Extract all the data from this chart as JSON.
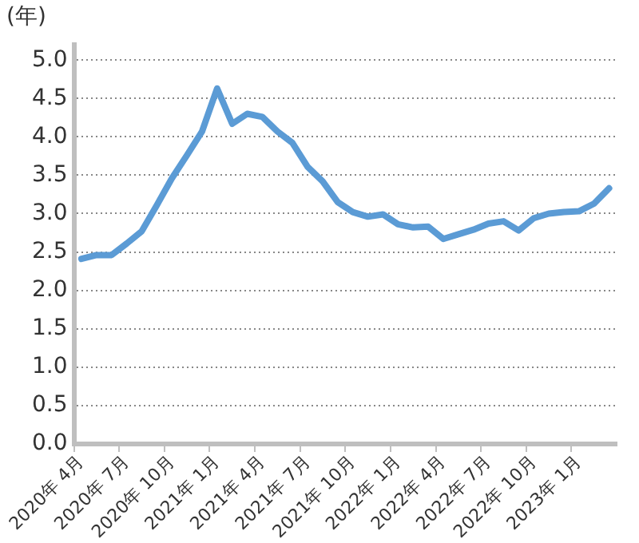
{
  "chart_data": {
    "type": "line",
    "ylabel": "(年)",
    "categories": [
      "2020年 4月",
      null,
      null,
      "2020年 7月",
      null,
      null,
      "2020年 10月",
      null,
      null,
      "2021年 1月",
      null,
      null,
      "2021年 4月",
      null,
      null,
      "2021年 7月",
      null,
      null,
      "2021年 10月",
      null,
      null,
      "2022年 1月",
      null,
      null,
      "2022年 4月",
      null,
      null,
      "2022年 7月",
      null,
      null,
      "2022年 10月",
      null,
      null,
      "2023年 1月",
      null,
      null
    ],
    "series": [
      {
        "color": "#5b9bd5",
        "values": [
          2.41,
          2.46,
          2.46,
          2.61,
          2.77,
          3.11,
          3.46,
          3.76,
          4.07,
          4.63,
          4.17,
          4.3,
          4.26,
          4.07,
          3.92,
          3.61,
          3.42,
          3.15,
          3.02,
          2.96,
          2.99,
          2.86,
          2.82,
          2.83,
          2.67,
          2.73,
          2.79,
          2.87,
          2.9,
          2.78,
          2.94,
          3.0,
          3.02,
          3.03,
          3.13,
          3.33
        ]
      }
    ],
    "ylim": [
      0,
      5.2
    ],
    "yticks": [
      {
        "value": 0,
        "label": "0.0"
      },
      {
        "value": 0.5,
        "label": "0.5"
      },
      {
        "value": 1,
        "label": "1.0"
      },
      {
        "value": 1.5,
        "label": "1.5"
      },
      {
        "value": 2,
        "label": "2.0"
      },
      {
        "value": 2.5,
        "label": "2.5"
      },
      {
        "value": 3,
        "label": "3.0"
      },
      {
        "value": 3.5,
        "label": "3.5"
      },
      {
        "value": 4,
        "label": "4.0"
      },
      {
        "value": 4.5,
        "label": "4.5"
      },
      {
        "value": 5,
        "label": "5.0"
      }
    ],
    "grid": "y",
    "line_style": "solid",
    "marker": "none",
    "legend": false
  }
}
